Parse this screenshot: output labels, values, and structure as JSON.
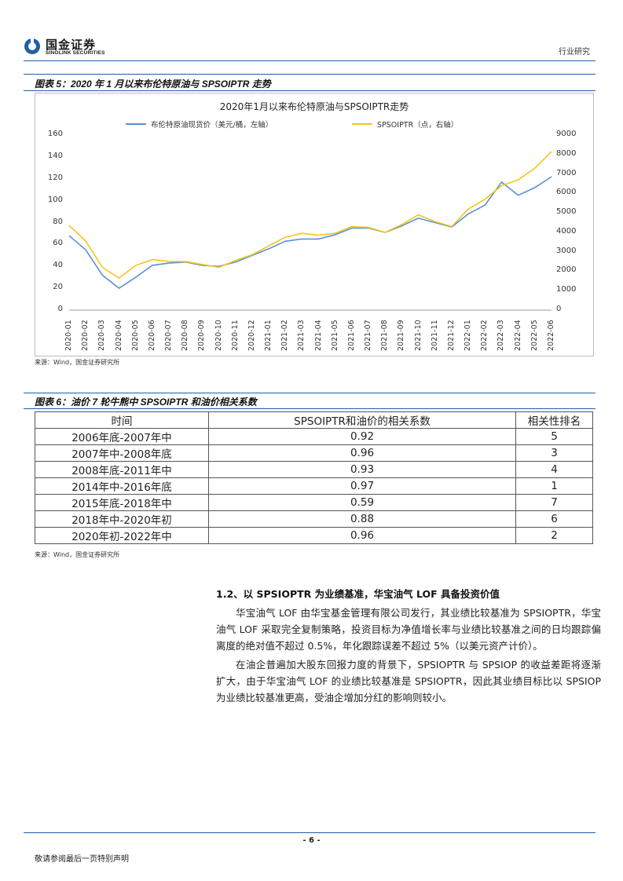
{
  "header": {
    "logo_cn": "国金证券",
    "logo_en": "SINOLINK SECURITIES",
    "category": "行业研究"
  },
  "figure5": {
    "caption": "图表 5：2020 年 1 月以来布伦特原油与 SPSOIPTR 走势",
    "source": "来源：Wind，国金证券研究所"
  },
  "chart_data": {
    "type": "line",
    "title": "2020年1月以来布伦特原油与SPSOIPTR走势",
    "x": [
      "2020-01",
      "2020-02",
      "2020-03",
      "2020-04",
      "2020-05",
      "2020-06",
      "2020-07",
      "2020-08",
      "2020-09",
      "2020-10",
      "2020-11",
      "2020-12",
      "2021-01",
      "2021-02",
      "2021-03",
      "2021-04",
      "2021-05",
      "2021-06",
      "2021-07",
      "2021-08",
      "2021-09",
      "2021-10",
      "2021-11",
      "2021-12",
      "2022-01",
      "2022-02",
      "2022-03",
      "2022-04",
      "2022-05",
      "2022-06"
    ],
    "left_axis": {
      "ylim": [
        0,
        160
      ],
      "ticks": [
        0,
        20,
        40,
        60,
        80,
        100,
        120,
        140,
        160
      ]
    },
    "right_axis": {
      "ylim": [
        0,
        9000
      ],
      "ticks": [
        0,
        1000,
        2000,
        3000,
        4000,
        5000,
        6000,
        7000,
        8000,
        9000
      ]
    },
    "grid": false,
    "legend_position": "top",
    "series": [
      {
        "name": "布伦特原油现货价（美元/桶，左轴）",
        "axis": "left",
        "color": "#5b8fd6",
        "values": [
          68,
          55,
          32,
          20,
          30,
          41,
          43,
          44,
          41,
          40,
          44,
          50,
          56,
          63,
          65,
          65,
          69,
          75,
          75,
          71,
          77,
          84,
          80,
          76,
          88,
          96,
          117,
          105,
          112,
          122
        ]
      },
      {
        "name": "SPSOIPTR（点，右轴）",
        "axis": "right",
        "color": "#f5c518",
        "values": [
          4350,
          3550,
          2200,
          1650,
          2300,
          2600,
          2500,
          2500,
          2350,
          2200,
          2550,
          2850,
          3300,
          3750,
          3950,
          3850,
          3950,
          4300,
          4250,
          4000,
          4400,
          4900,
          4550,
          4300,
          5200,
          5700,
          6400,
          6700,
          7300,
          8150
        ]
      }
    ]
  },
  "figure6": {
    "caption": "图表 6：油价 7 轮牛熊中 SPSOIPTR 和油价相关系数",
    "headers": [
      "时间",
      "SPSOIPTR和油价的相关系数",
      "相关性排名"
    ],
    "rows": [
      [
        "2006年底-2007年中",
        "0.92",
        "5"
      ],
      [
        "2007年中-2008年底",
        "0.96",
        "3"
      ],
      [
        "2008年底-2011年中",
        "0.93",
        "4"
      ],
      [
        "2014年中-2016年底",
        "0.97",
        "1"
      ],
      [
        "2015年底-2018年中",
        "0.59",
        "7"
      ],
      [
        "2018年中-2020年初",
        "0.88",
        "6"
      ],
      [
        "2020年初-2022年中",
        "0.96",
        "2"
      ]
    ],
    "source": "来源：Wind，国金证券研究所"
  },
  "section": {
    "title": "1.2、以 SPSIOPTR 为业绩基准，华宝油气 LOF 具备投资价值",
    "para1": "华宝油气 LOF 由华宝基金管理有限公司发行，其业绩比较基准为 SPSIOPTR，华宝油气 LOF 采取完全复制策略，投资目标为净值增长率与业绩比较基准之间的日均跟踪偏离度的绝对值不超过 0.5%，年化跟踪误差不超过 5%（以美元资产计价）。",
    "para2": "在油企普遍加大股东回报力度的背景下，SPSIOPTR 与 SPSIOP 的收益差距将逐渐扩大，由于华宝油气 LOF 的业绩比较基准是 SPSIOPTR，因此其业绩目标比以 SPSIOP 为业绩比较基准更高，受油企增加分红的影响则较小。"
  },
  "footer": {
    "page": "- 6 -",
    "note": "敬请参阅最后一页特别声明"
  }
}
